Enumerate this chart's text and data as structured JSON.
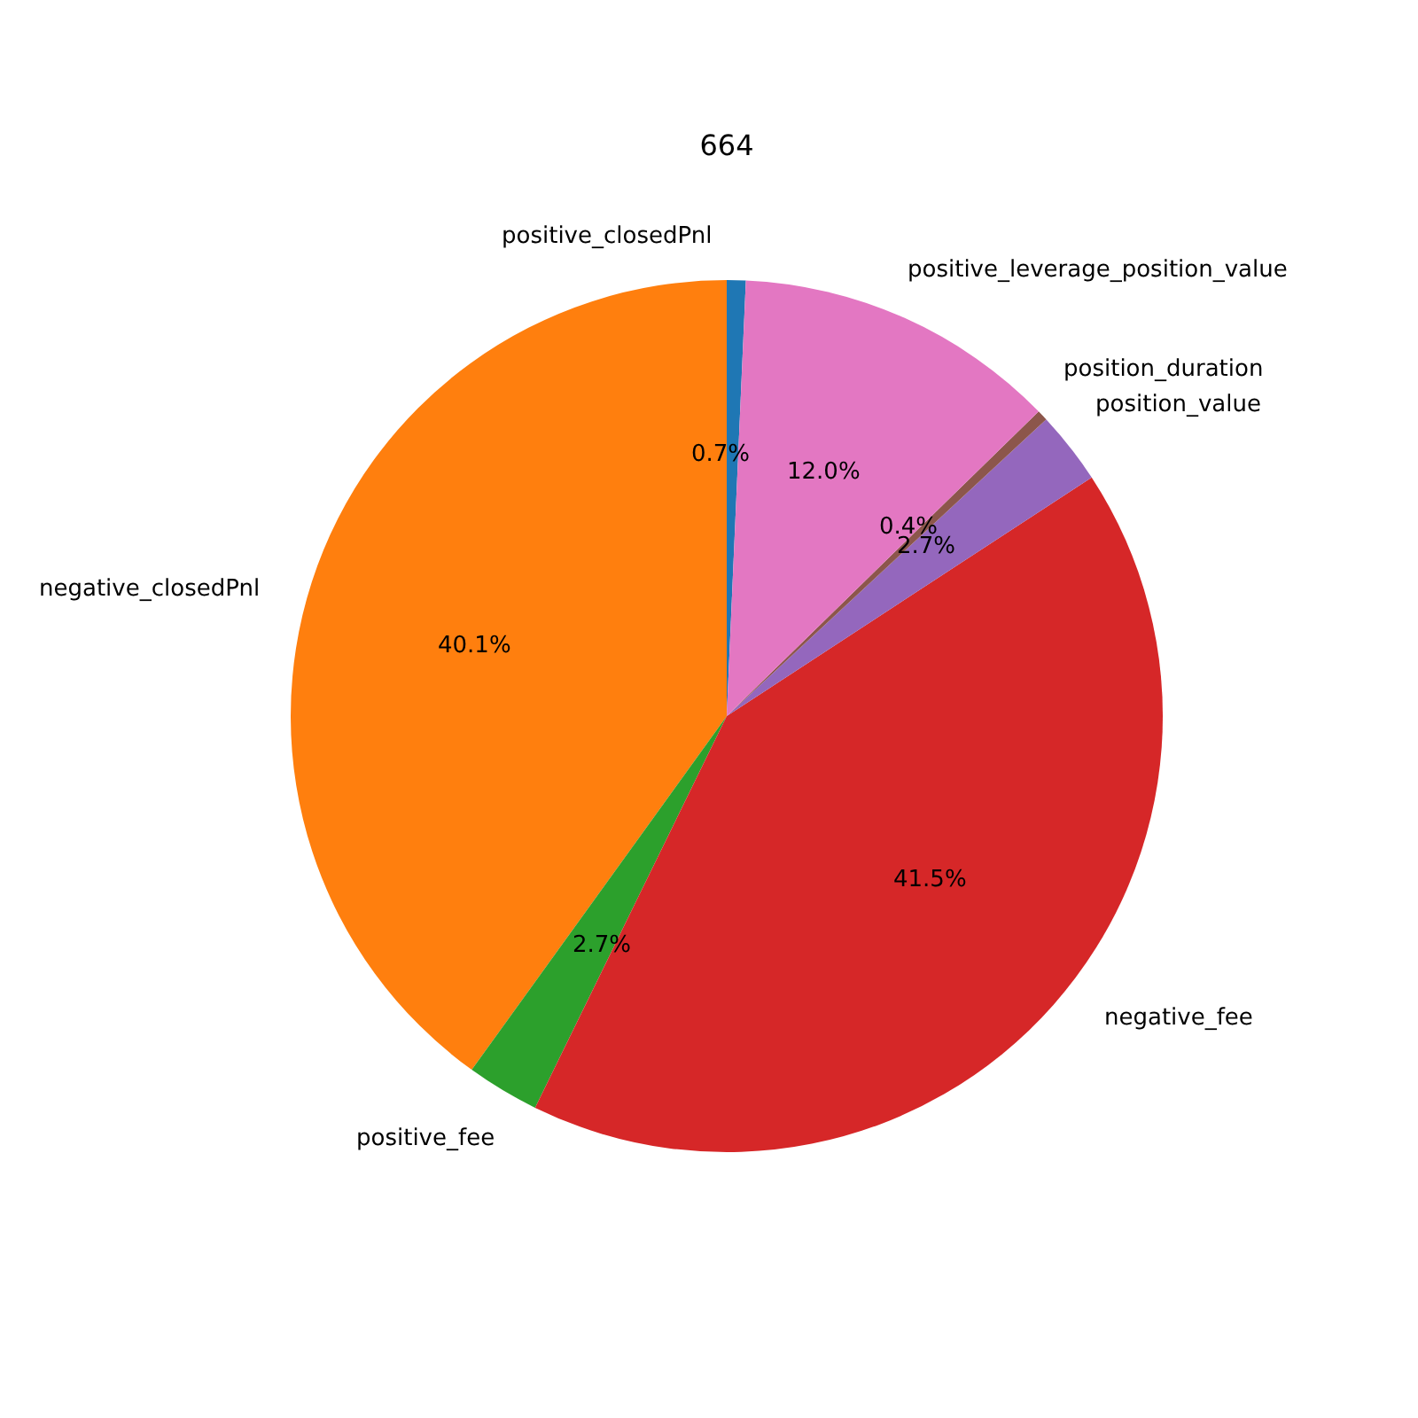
{
  "chart_data": {
    "type": "pie",
    "title": "664",
    "categories": [
      "positive_closedPnl",
      "negative_closedPnl",
      "positive_fee",
      "negative_fee",
      "position_value",
      "position_duration",
      "positive_leverage_position_value"
    ],
    "values": [
      0.7,
      40.1,
      2.7,
      41.5,
      2.7,
      0.4,
      12.0
    ],
    "value_labels": [
      "0.7%",
      "40.1%",
      "2.7%",
      "41.5%",
      "2.7%",
      "0.4%",
      "12.0%"
    ],
    "colors": [
      "#1f77b4",
      "#ff7f0e",
      "#2ca02c",
      "#d62728",
      "#9467bd",
      "#8c564b",
      "#e377c2"
    ],
    "legend": false
  }
}
